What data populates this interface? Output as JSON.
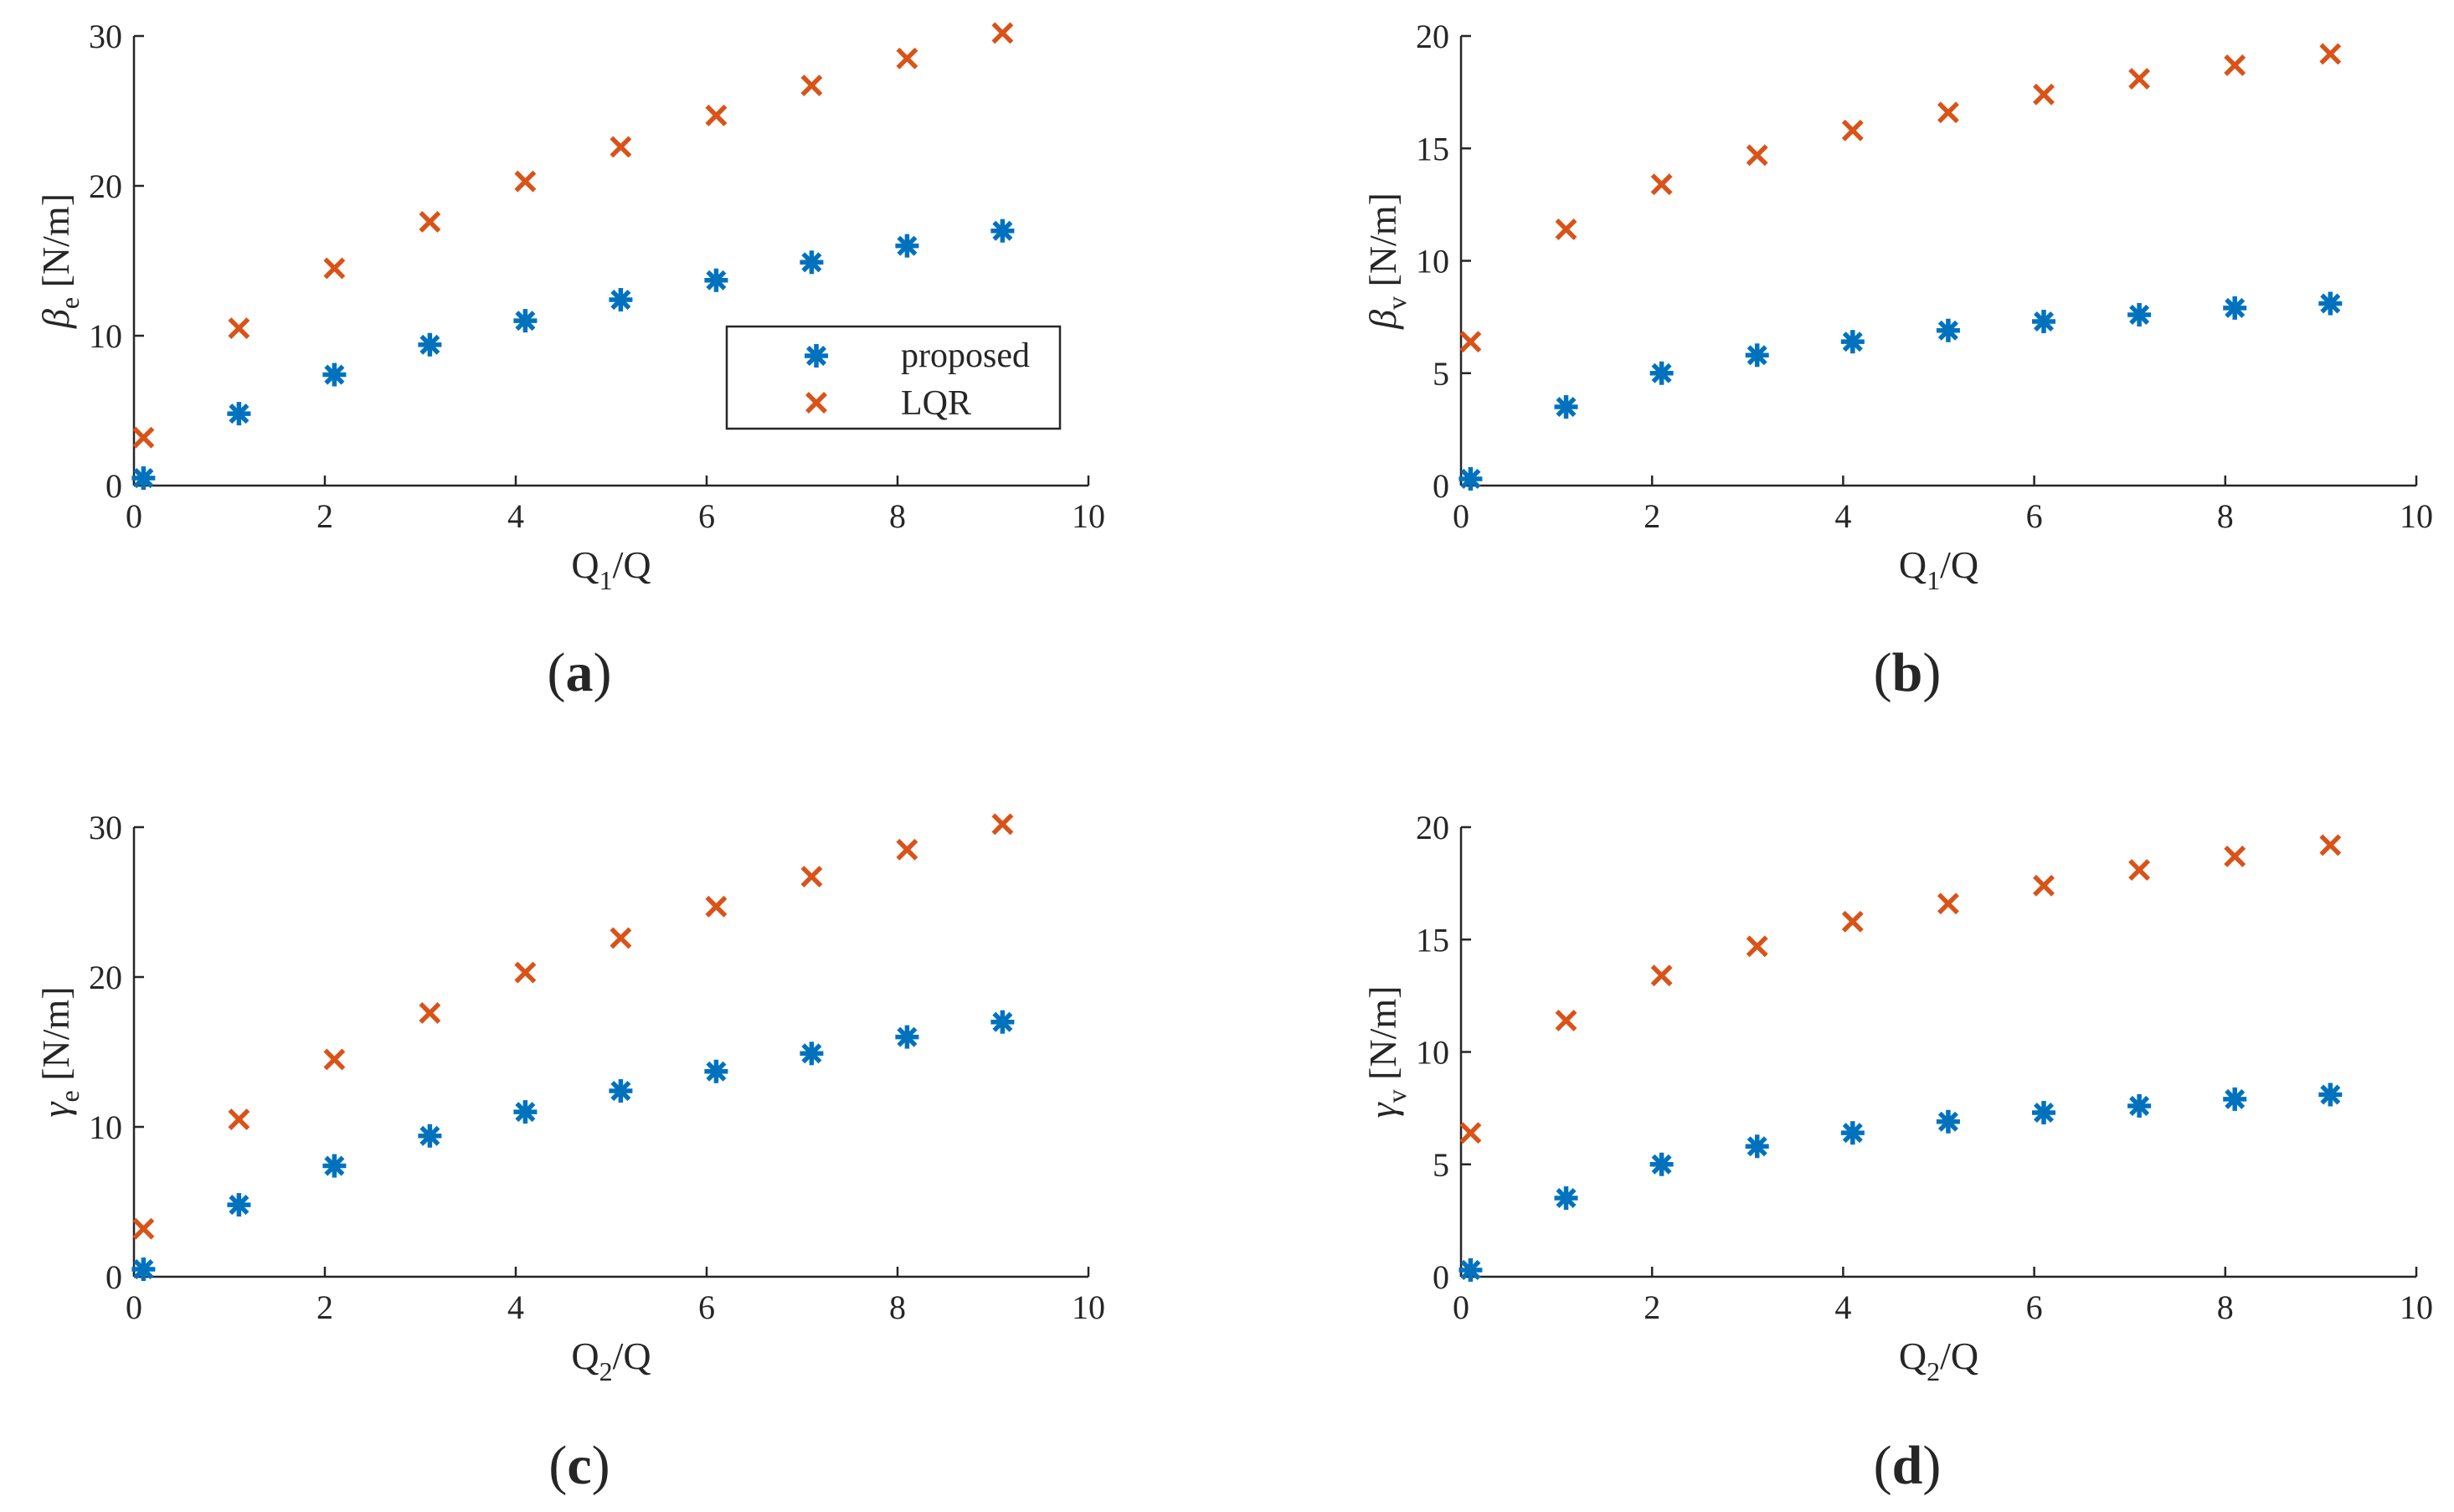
{
  "figure": {
    "legend": {
      "entries": [
        "proposed",
        "LQR"
      ]
    }
  },
  "chart_data": [
    {
      "type": "scatter",
      "panel_label": "a",
      "ylabel": {
        "main": "β",
        "sub": "e",
        "unit": "[N/m]"
      },
      "xlabel": {
        "main": "Q",
        "sub": "1",
        "tail": "/Q"
      },
      "xlim": [
        0,
        10
      ],
      "ylim": [
        0,
        30
      ],
      "xticks": [
        "0",
        "2",
        "4",
        "6",
        "8",
        "10"
      ],
      "yticks": [
        "0",
        "10",
        "20",
        "30"
      ],
      "x": [
        0.1,
        1.1,
        2.1,
        3.1,
        4.1,
        5.1,
        6.1,
        7.1,
        8.1,
        9.1
      ],
      "series": [
        {
          "name": "proposed",
          "color": "#0072BD",
          "marker": "asterisk",
          "values": [
            0.5,
            4.8,
            7.4,
            9.4,
            11.0,
            12.4,
            13.7,
            14.9,
            16.0,
            17.0
          ]
        },
        {
          "name": "LQR",
          "color": "#D95319",
          "marker": "x",
          "values": [
            3.2,
            10.5,
            14.5,
            17.6,
            20.3,
            22.6,
            24.7,
            26.7,
            28.5,
            30.2
          ]
        }
      ],
      "legend": "inside-right"
    },
    {
      "type": "scatter",
      "panel_label": "b",
      "ylabel": {
        "main": "β",
        "sub": "v",
        "unit": "[N/m]"
      },
      "xlabel": {
        "main": "Q",
        "sub": "1",
        "tail": "/Q"
      },
      "xlim": [
        0,
        10
      ],
      "ylim": [
        0,
        20
      ],
      "xticks": [
        "0",
        "2",
        "4",
        "6",
        "8",
        "10"
      ],
      "yticks": [
        "0",
        "5",
        "10",
        "15",
        "20"
      ],
      "x": [
        0.1,
        1.1,
        2.1,
        3.1,
        4.1,
        5.1,
        6.1,
        7.1,
        8.1,
        9.1
      ],
      "series": [
        {
          "name": "proposed",
          "color": "#0072BD",
          "marker": "asterisk",
          "values": [
            0.3,
            3.5,
            5.0,
            5.8,
            6.4,
            6.9,
            7.3,
            7.6,
            7.9,
            8.1
          ]
        },
        {
          "name": "LQR",
          "color": "#D95319",
          "marker": "x",
          "values": [
            6.4,
            11.4,
            13.4,
            14.7,
            15.8,
            16.6,
            17.4,
            18.1,
            18.7,
            19.2
          ]
        }
      ]
    },
    {
      "type": "scatter",
      "panel_label": "c",
      "ylabel": {
        "main": "γ",
        "sub": "e",
        "unit": "[N/m]"
      },
      "xlabel": {
        "main": "Q",
        "sub": "2",
        "tail": "/Q"
      },
      "xlim": [
        0,
        10
      ],
      "ylim": [
        0,
        30
      ],
      "xticks": [
        "0",
        "2",
        "4",
        "6",
        "8",
        "10"
      ],
      "yticks": [
        "0",
        "10",
        "20",
        "30"
      ],
      "x": [
        0.1,
        1.1,
        2.1,
        3.1,
        4.1,
        5.1,
        6.1,
        7.1,
        8.1,
        9.1
      ],
      "series": [
        {
          "name": "proposed",
          "color": "#0072BD",
          "marker": "asterisk",
          "values": [
            0.5,
            4.8,
            7.4,
            9.4,
            11.0,
            12.4,
            13.7,
            14.9,
            16.0,
            17.0
          ]
        },
        {
          "name": "LQR",
          "color": "#D95319",
          "marker": "x",
          "values": [
            3.2,
            10.5,
            14.5,
            17.6,
            20.3,
            22.6,
            24.7,
            26.7,
            28.5,
            30.2
          ]
        }
      ]
    },
    {
      "type": "scatter",
      "panel_label": "d",
      "ylabel": {
        "main": "γ",
        "sub": "v",
        "unit": "[N/m]"
      },
      "xlabel": {
        "main": "Q",
        "sub": "2",
        "tail": "/Q"
      },
      "xlim": [
        0,
        10
      ],
      "ylim": [
        0,
        20
      ],
      "xticks": [
        "0",
        "2",
        "4",
        "6",
        "8",
        "10"
      ],
      "yticks": [
        "0",
        "5",
        "10",
        "15",
        "20"
      ],
      "x": [
        0.1,
        1.1,
        2.1,
        3.1,
        4.1,
        5.1,
        6.1,
        7.1,
        8.1,
        9.1
      ],
      "series": [
        {
          "name": "proposed",
          "color": "#0072BD",
          "marker": "asterisk",
          "values": [
            0.3,
            3.5,
            5.0,
            5.8,
            6.4,
            6.9,
            7.3,
            7.6,
            7.9,
            8.1
          ]
        },
        {
          "name": "LQR",
          "color": "#D95319",
          "marker": "x",
          "values": [
            6.4,
            11.4,
            13.4,
            14.7,
            15.8,
            16.6,
            17.4,
            18.1,
            18.7,
            19.2
          ]
        }
      ]
    }
  ]
}
